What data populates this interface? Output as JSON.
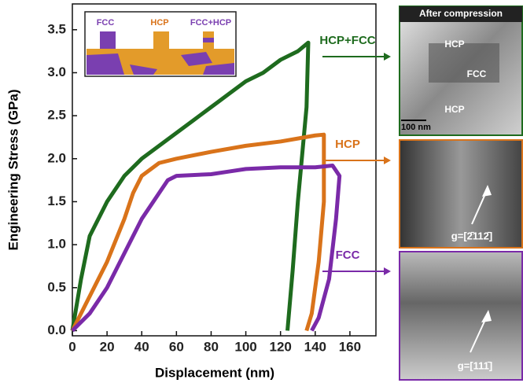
{
  "chart_data": {
    "type": "line",
    "xlabel": "Displacement (nm)",
    "ylabel": "Engineering Stress (GPa)",
    "xlim": [
      0,
      175
    ],
    "ylim": [
      -0.06,
      3.8
    ],
    "xticks": [
      0,
      20,
      40,
      60,
      80,
      100,
      120,
      140,
      160
    ],
    "yticks": [
      {
        "value": 0,
        "label": "0.0"
      },
      0.5,
      {
        "value": 1,
        "label": "1.0"
      },
      1.5,
      {
        "value": 2,
        "label": "2.0"
      },
      2.5,
      {
        "value": 3,
        "label": "3.0"
      },
      3.5
    ],
    "series": [
      {
        "name": "HCP+FCC",
        "color": "#1e6b1e",
        "x": [
          0,
          5,
          10,
          20,
          30,
          40,
          50,
          60,
          70,
          80,
          90,
          100,
          110,
          120,
          130,
          136,
          135,
          130,
          127,
          124
        ],
        "values": [
          0,
          0.6,
          1.1,
          1.5,
          1.8,
          2.0,
          2.15,
          2.3,
          2.45,
          2.6,
          2.75,
          2.9,
          3.0,
          3.15,
          3.25,
          3.35,
          2.6,
          1.5,
          0.7,
          0
        ]
      },
      {
        "name": "HCP",
        "color": "#d9731a",
        "x": [
          0,
          10,
          20,
          30,
          35,
          40,
          50,
          60,
          80,
          100,
          120,
          140,
          145,
          145,
          142,
          138,
          135
        ],
        "values": [
          0,
          0.4,
          0.8,
          1.3,
          1.6,
          1.8,
          1.95,
          2.0,
          2.08,
          2.15,
          2.2,
          2.27,
          2.28,
          1.5,
          0.8,
          0.2,
          0
        ]
      },
      {
        "name": "FCC",
        "color": "#7a2aa8",
        "x": [
          0,
          10,
          20,
          30,
          40,
          50,
          55,
          60,
          80,
          90,
          100,
          120,
          140,
          150,
          154,
          152,
          148,
          142,
          138
        ],
        "values": [
          0,
          0.2,
          0.5,
          0.9,
          1.3,
          1.6,
          1.75,
          1.8,
          1.82,
          1.85,
          1.88,
          1.9,
          1.9,
          1.92,
          1.8,
          1.3,
          0.6,
          0.15,
          0
        ]
      }
    ],
    "inset_labels": [
      "FCC",
      "HCP",
      "FCC+HCP"
    ],
    "panels": [
      {
        "title": "After compression",
        "labels": [
          "HCP",
          "FCC",
          "HCP"
        ],
        "scale": "100 nm"
      },
      {
        "label": "g=[2̄112̄]"
      },
      {
        "label": "g=[111̄]"
      }
    ]
  }
}
